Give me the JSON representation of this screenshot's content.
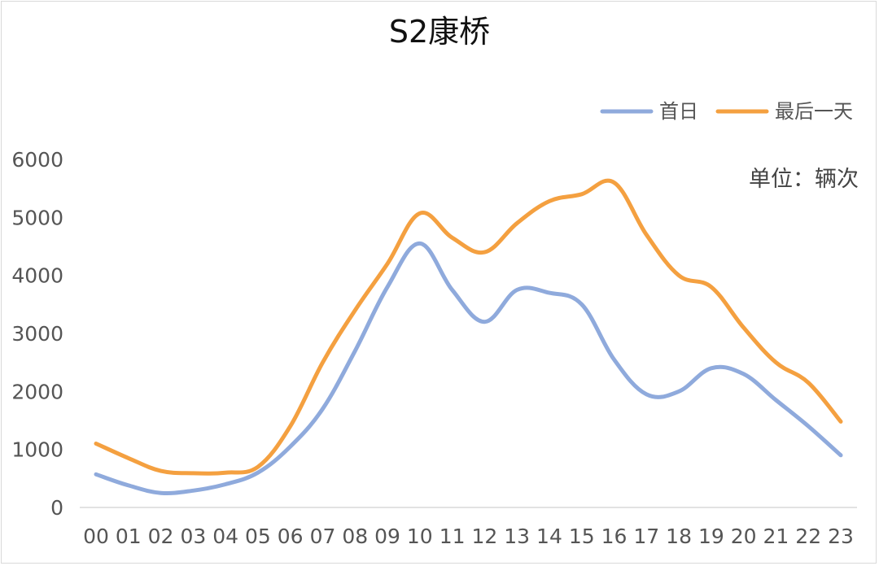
{
  "chart_data": {
    "type": "line",
    "title": "S2康桥",
    "unit_label": "单位：辆次",
    "xlabel": "",
    "ylabel": "",
    "ylim": [
      0,
      6000
    ],
    "yticks": [
      "0",
      "1000",
      "2000",
      "3000",
      "4000",
      "5000",
      "6000"
    ],
    "categories": [
      "00",
      "01",
      "02",
      "03",
      "04",
      "05",
      "06",
      "07",
      "08",
      "09",
      "10",
      "11",
      "12",
      "13",
      "14",
      "15",
      "16",
      "17",
      "18",
      "19",
      "20",
      "21",
      "22",
      "23"
    ],
    "grid": false,
    "legend_position": "top-right",
    "series": [
      {
        "name": "首日",
        "color": "#8faadc",
        "values": [
          570,
          380,
          250,
          290,
          400,
          600,
          1050,
          1700,
          2700,
          3800,
          4550,
          3750,
          3200,
          3750,
          3700,
          3500,
          2550,
          1950,
          2000,
          2400,
          2300,
          1850,
          1400,
          900
        ]
      },
      {
        "name": "最后一天",
        "color": "#f4a040",
        "values": [
          1100,
          850,
          630,
          590,
          600,
          700,
          1400,
          2500,
          3400,
          4200,
          5070,
          4650,
          4400,
          4900,
          5280,
          5400,
          5600,
          4700,
          4000,
          3800,
          3100,
          2500,
          2150,
          1480
        ]
      }
    ]
  }
}
